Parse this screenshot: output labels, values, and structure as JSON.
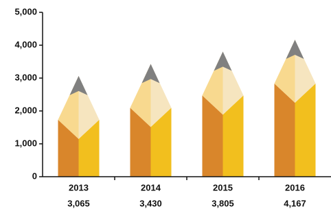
{
  "chart_data": {
    "type": "pencil-bar",
    "categories": [
      "2013",
      "2014",
      "2015",
      "2016"
    ],
    "values": [
      3065,
      3430,
      3805,
      4167
    ],
    "value_labels": [
      "3,065",
      "3,430",
      "3,805",
      "4,167"
    ],
    "ylim": [
      0,
      5000
    ],
    "yticks": [
      0,
      {
        "value": 1000,
        "label": "1,000"
      },
      {
        "value": 2000,
        "label": "2,000"
      },
      {
        "value": 3000,
        "label": "3,000"
      },
      {
        "value": 4000,
        "label": "4,000"
      },
      {
        "value": 5000,
        "label": "5,000"
      }
    ],
    "colors": {
      "body_left": "#d9862b",
      "body_right": "#f2bf1e",
      "wood_left": "#f8d98f",
      "wood_right": "#f6e5bf",
      "lead": "#808080"
    }
  }
}
